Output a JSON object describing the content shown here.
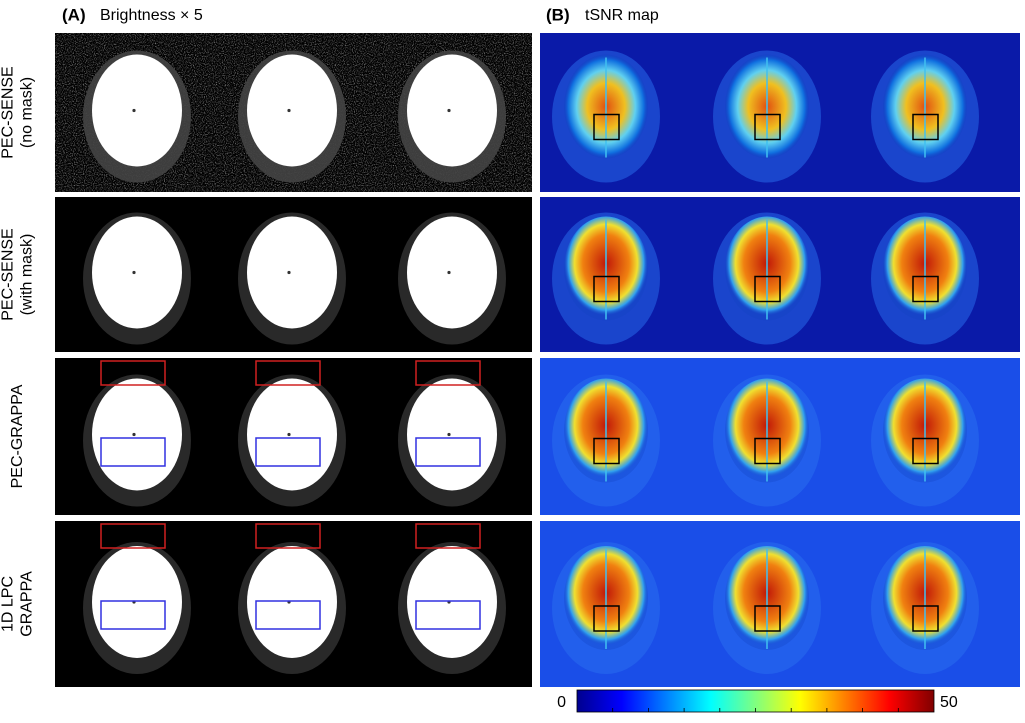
{
  "panel_a": {
    "label": "(A)",
    "title": "Brightness × 5"
  },
  "panel_b": {
    "label": "(B)",
    "title": "tSNR map"
  },
  "rows": [
    {
      "lines": [
        "PEC-SENSE",
        "(no mask)"
      ]
    },
    {
      "lines": [
        "PEC-SENSE",
        "(with  mask)"
      ]
    },
    {
      "lines": [
        "PEC-GRAPPA"
      ]
    },
    {
      "lines": [
        "1D LPC",
        "GRAPPA"
      ]
    }
  ],
  "colorbar": {
    "min": 0,
    "max": 50
  }
}
